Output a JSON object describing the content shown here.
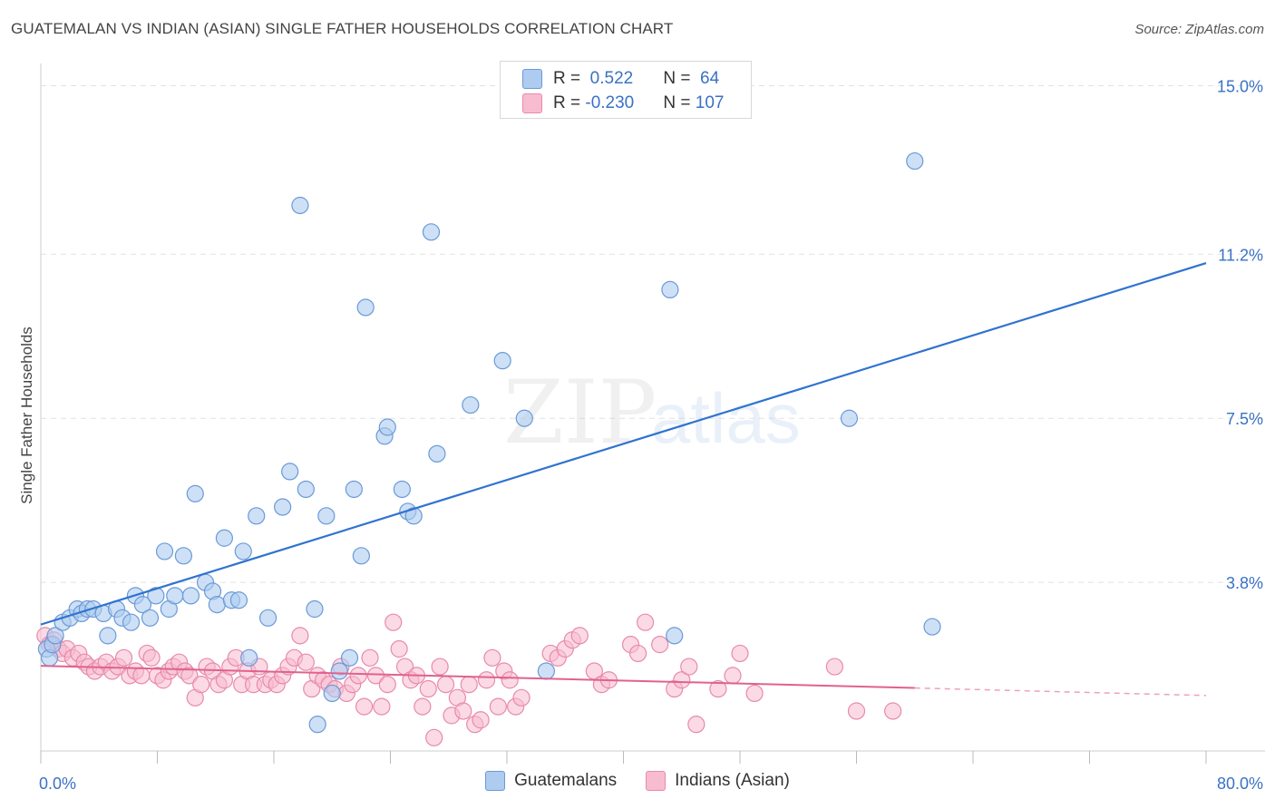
{
  "title": "GUATEMALAN VS INDIAN (ASIAN) SINGLE FATHER HOUSEHOLDS CORRELATION CHART",
  "source": "Source: ZipAtlas.com",
  "watermark": {
    "zip": "ZIP",
    "atlas": "atlas"
  },
  "colors": {
    "blue_fill": "#aecbf0",
    "blue_stroke": "#6a9ad8",
    "blue_line": "#2f73d0",
    "pink_fill": "#f8bcd0",
    "pink_stroke": "#e88aaa",
    "pink_line": "#e0628f",
    "tick_label": "#3a72c4",
    "grid": "#e2e2e2"
  },
  "legend": {
    "rows": [
      {
        "r_label": "R = ",
        "r_value": " 0.522",
        "n_label": "N = ",
        "n_value": " 64"
      },
      {
        "r_label": "R = ",
        "r_value": "-0.230",
        "n_label": "N = ",
        "n_value": "107"
      }
    ]
  },
  "chart_data": {
    "type": "scatter",
    "title": "GUATEMALAN VS INDIAN (ASIAN) SINGLE FATHER HOUSEHOLDS CORRELATION CHART",
    "xlabel": "",
    "ylabel": "Single Father Households",
    "xlim": [
      0,
      80
    ],
    "ylim": [
      0,
      15.5
    ],
    "x_tick_labels": [
      "0.0%",
      "80.0%"
    ],
    "y_ticks": [
      3.8,
      7.5,
      11.2,
      15.0
    ],
    "y_tick_labels": [
      "3.8%",
      "7.5%",
      "11.2%",
      "15.0%"
    ],
    "grid": true,
    "legend_position": "top-center",
    "series": [
      {
        "name": "Guatemalans",
        "r": 0.522,
        "n": 64,
        "trend": {
          "x": [
            0,
            80
          ],
          "y": [
            2.85,
            11.0
          ]
        },
        "points": [
          [
            0.4,
            2.3
          ],
          [
            0.6,
            2.1
          ],
          [
            0.8,
            2.4
          ],
          [
            1.0,
            2.6
          ],
          [
            1.5,
            2.9
          ],
          [
            2.0,
            3.0
          ],
          [
            2.5,
            3.2
          ],
          [
            2.8,
            3.1
          ],
          [
            3.2,
            3.2
          ],
          [
            3.6,
            3.2
          ],
          [
            4.3,
            3.1
          ],
          [
            4.6,
            2.6
          ],
          [
            5.2,
            3.2
          ],
          [
            5.6,
            3.0
          ],
          [
            6.2,
            2.9
          ],
          [
            6.5,
            3.5
          ],
          [
            7.0,
            3.3
          ],
          [
            7.5,
            3.0
          ],
          [
            7.9,
            3.5
          ],
          [
            8.5,
            4.5
          ],
          [
            8.8,
            3.2
          ],
          [
            9.2,
            3.5
          ],
          [
            9.8,
            4.4
          ],
          [
            10.3,
            3.5
          ],
          [
            10.6,
            5.8
          ],
          [
            11.3,
            3.8
          ],
          [
            11.8,
            3.6
          ],
          [
            12.1,
            3.3
          ],
          [
            12.6,
            4.8
          ],
          [
            13.1,
            3.4
          ],
          [
            13.6,
            3.4
          ],
          [
            13.9,
            4.5
          ],
          [
            14.3,
            2.1
          ],
          [
            14.8,
            5.3
          ],
          [
            15.6,
            3.0
          ],
          [
            16.6,
            5.5
          ],
          [
            17.1,
            6.3
          ],
          [
            18.2,
            5.9
          ],
          [
            18.8,
            3.2
          ],
          [
            19.0,
            0.6
          ],
          [
            19.6,
            5.3
          ],
          [
            20.0,
            1.3
          ],
          [
            21.2,
            2.1
          ],
          [
            21.5,
            5.9
          ],
          [
            22.0,
            4.4
          ],
          [
            22.3,
            10.0
          ],
          [
            23.6,
            7.1
          ],
          [
            23.8,
            7.3
          ],
          [
            24.8,
            5.9
          ],
          [
            25.2,
            5.4
          ],
          [
            25.6,
            5.3
          ],
          [
            26.8,
            11.7
          ],
          [
            27.2,
            6.7
          ],
          [
            29.5,
            7.8
          ],
          [
            31.7,
            8.8
          ],
          [
            33.2,
            7.5
          ],
          [
            34.7,
            1.8
          ],
          [
            43.2,
            10.4
          ],
          [
            43.5,
            2.6
          ],
          [
            55.5,
            7.5
          ],
          [
            60.0,
            13.3
          ],
          [
            61.2,
            2.8
          ],
          [
            17.8,
            12.3
          ],
          [
            20.5,
            1.8
          ]
        ]
      },
      {
        "name": "Indians (Asian)",
        "r": -0.23,
        "n": 107,
        "trend": {
          "x": [
            0,
            60
          ],
          "y": [
            1.92,
            1.42
          ]
        },
        "trend_dashed": {
          "x": [
            60,
            80
          ],
          "y": [
            1.42,
            1.25
          ]
        },
        "points": [
          [
            0.3,
            2.6
          ],
          [
            0.6,
            2.4
          ],
          [
            0.9,
            2.5
          ],
          [
            1.2,
            2.3
          ],
          [
            1.5,
            2.2
          ],
          [
            1.8,
            2.3
          ],
          [
            2.2,
            2.1
          ],
          [
            2.6,
            2.2
          ],
          [
            3.0,
            2.0
          ],
          [
            3.3,
            1.9
          ],
          [
            3.7,
            1.8
          ],
          [
            4.1,
            1.9
          ],
          [
            4.5,
            2.0
          ],
          [
            4.9,
            1.8
          ],
          [
            5.3,
            1.9
          ],
          [
            5.7,
            2.1
          ],
          [
            6.1,
            1.7
          ],
          [
            6.5,
            1.8
          ],
          [
            6.9,
            1.7
          ],
          [
            7.3,
            2.2
          ],
          [
            7.6,
            2.1
          ],
          [
            8.0,
            1.7
          ],
          [
            8.4,
            1.6
          ],
          [
            8.8,
            1.8
          ],
          [
            9.1,
            1.9
          ],
          [
            9.5,
            2.0
          ],
          [
            9.9,
            1.8
          ],
          [
            10.2,
            1.7
          ],
          [
            10.6,
            1.2
          ],
          [
            11.0,
            1.5
          ],
          [
            11.4,
            1.9
          ],
          [
            11.8,
            1.8
          ],
          [
            12.2,
            1.5
          ],
          [
            12.6,
            1.6
          ],
          [
            13.0,
            1.9
          ],
          [
            13.4,
            2.1
          ],
          [
            13.8,
            1.5
          ],
          [
            14.2,
            1.8
          ],
          [
            14.6,
            1.5
          ],
          [
            15.0,
            1.9
          ],
          [
            15.4,
            1.5
          ],
          [
            15.8,
            1.6
          ],
          [
            16.2,
            1.5
          ],
          [
            16.6,
            1.7
          ],
          [
            17.0,
            1.9
          ],
          [
            17.4,
            2.1
          ],
          [
            17.8,
            2.6
          ],
          [
            18.2,
            2.0
          ],
          [
            18.6,
            1.4
          ],
          [
            19.0,
            1.7
          ],
          [
            19.4,
            1.6
          ],
          [
            19.8,
            1.5
          ],
          [
            20.2,
            1.4
          ],
          [
            20.6,
            1.9
          ],
          [
            21.0,
            1.3
          ],
          [
            21.4,
            1.5
          ],
          [
            21.8,
            1.7
          ],
          [
            22.2,
            1.0
          ],
          [
            22.6,
            2.1
          ],
          [
            23.0,
            1.7
          ],
          [
            23.4,
            1.0
          ],
          [
            23.8,
            1.5
          ],
          [
            24.2,
            2.9
          ],
          [
            24.6,
            2.3
          ],
          [
            25.0,
            1.9
          ],
          [
            25.4,
            1.6
          ],
          [
            25.8,
            1.7
          ],
          [
            26.2,
            1.0
          ],
          [
            26.6,
            1.4
          ],
          [
            27.0,
            0.3
          ],
          [
            27.4,
            1.9
          ],
          [
            27.8,
            1.5
          ],
          [
            28.2,
            0.8
          ],
          [
            28.6,
            1.2
          ],
          [
            29.0,
            0.9
          ],
          [
            29.4,
            1.5
          ],
          [
            29.8,
            0.6
          ],
          [
            30.2,
            0.7
          ],
          [
            30.6,
            1.6
          ],
          [
            31.0,
            2.1
          ],
          [
            31.4,
            1.0
          ],
          [
            31.8,
            1.8
          ],
          [
            32.2,
            1.6
          ],
          [
            32.6,
            1.0
          ],
          [
            33.0,
            1.2
          ],
          [
            35.0,
            2.2
          ],
          [
            35.5,
            2.1
          ],
          [
            36.0,
            2.3
          ],
          [
            36.5,
            2.5
          ],
          [
            37.0,
            2.6
          ],
          [
            38.0,
            1.8
          ],
          [
            38.5,
            1.5
          ],
          [
            39.0,
            1.6
          ],
          [
            40.5,
            2.4
          ],
          [
            41.0,
            2.2
          ],
          [
            41.5,
            2.9
          ],
          [
            42.5,
            2.4
          ],
          [
            43.5,
            1.4
          ],
          [
            44.0,
            1.6
          ],
          [
            44.5,
            1.9
          ],
          [
            45.0,
            0.6
          ],
          [
            46.5,
            1.4
          ],
          [
            47.5,
            1.7
          ],
          [
            48.0,
            2.2
          ],
          [
            49.0,
            1.3
          ],
          [
            54.5,
            1.9
          ],
          [
            56.0,
            0.9
          ],
          [
            58.5,
            0.9
          ]
        ]
      }
    ]
  }
}
